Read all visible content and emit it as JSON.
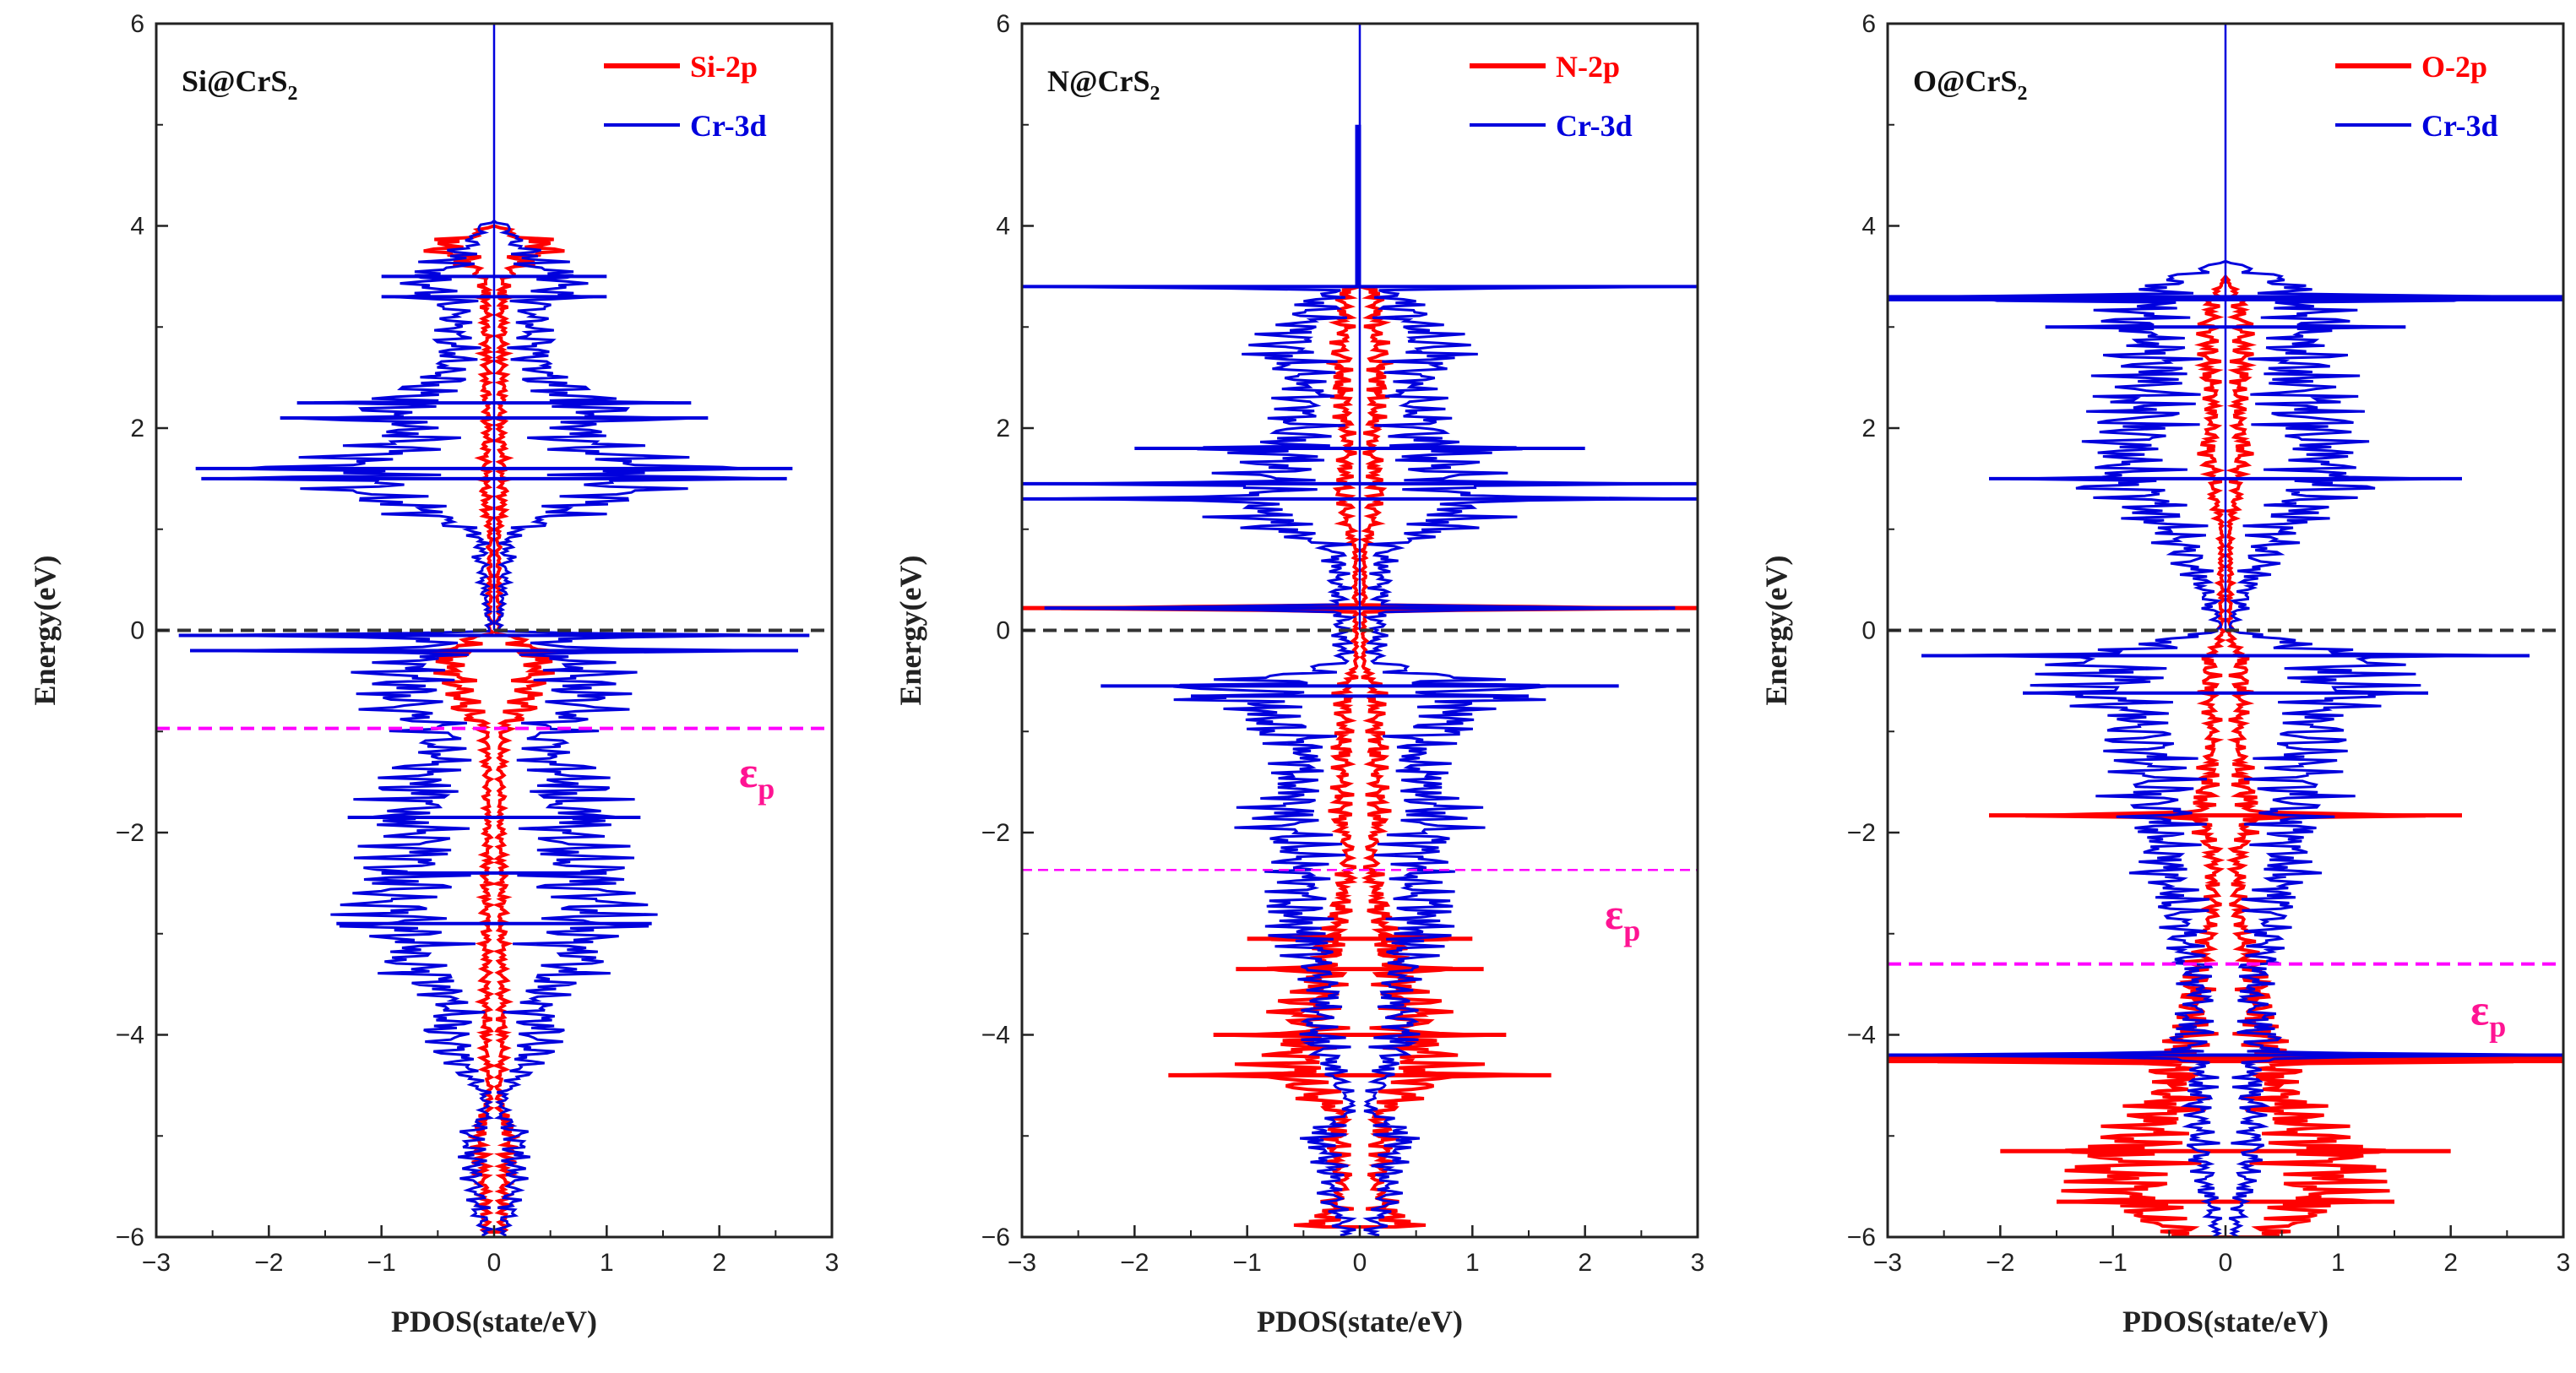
{
  "colors": {
    "p_orbital": "#ff0000",
    "d_orbital": "#0000dd",
    "fermi": "#333333",
    "band_center": "#ff00ff",
    "eps_text": "#ff1493",
    "axis": "#222222"
  },
  "chart_data": [
    {
      "type": "line",
      "title": "Si@CrS₂",
      "title_main": "Si@CrS",
      "title_sub": "2",
      "xlabel": "PDOS(state/eV)",
      "ylabel": "Energy(eV)",
      "xlim": [
        -3,
        3
      ],
      "ylim": [
        -6,
        6
      ],
      "xticks": [
        -3,
        -2,
        -1,
        0,
        1,
        2,
        3
      ],
      "yticks": [
        -6,
        -4,
        -2,
        0,
        2,
        4,
        6
      ],
      "xtick_labels": [
        "−3",
        "−2",
        "−1",
        "0",
        "1",
        "2",
        "3"
      ],
      "ytick_labels": [
        "−6",
        "−4",
        "−2",
        "0",
        "2",
        "4",
        "6"
      ],
      "fermi_level": 0,
      "band_center": -0.97,
      "band_center_label": "ε",
      "band_center_label_sub": "p",
      "band_center_label_y": -1.55,
      "band_center_line_style": "bold",
      "legend": [
        "Si-2p",
        "Cr-3d"
      ],
      "series": [
        {
          "name": "Si-2p",
          "color_key": "p_orbital",
          "envelope": [
            [
              -5.95,
              0.1
            ],
            [
              -5.5,
              0.12
            ],
            [
              -5.0,
              0.2
            ],
            [
              -4.6,
              0.05
            ],
            [
              -4.2,
              0.1
            ],
            [
              -3.5,
              0.1
            ],
            [
              -3.0,
              0.1
            ],
            [
              -2.5,
              0.1
            ],
            [
              -2.0,
              0.08
            ],
            [
              -1.5,
              0.08
            ],
            [
              -1.0,
              0.1
            ],
            [
              -0.8,
              0.35
            ],
            [
              -0.5,
              0.45
            ],
            [
              -0.25,
              0.55
            ],
            [
              -0.1,
              0.3
            ],
            [
              -0.02,
              0.05
            ],
            [
              0.95,
              0.05
            ],
            [
              1.2,
              0.1
            ],
            [
              1.6,
              0.12
            ],
            [
              2.0,
              0.08
            ],
            [
              2.4,
              0.1
            ],
            [
              2.8,
              0.1
            ],
            [
              3.2,
              0.1
            ],
            [
              3.5,
              0.15
            ],
            [
              3.8,
              0.65
            ],
            [
              4.0,
              0.0
            ]
          ]
        },
        {
          "name": "Cr-3d",
          "color_key": "d_orbital",
          "spikes": [
            [
              -0.05,
              2.8
            ],
            [
              -0.2,
              2.7
            ],
            [
              -1.85,
              1.3
            ],
            [
              -2.4,
              1.0
            ],
            [
              -2.9,
              1.4
            ],
            [
              1.5,
              2.6
            ],
            [
              1.6,
              2.65
            ],
            [
              2.1,
              1.9
            ],
            [
              2.25,
              1.75
            ],
            [
              3.5,
              1.0
            ],
            [
              3.3,
              1.0
            ]
          ],
          "envelope": [
            [
              -6.0,
              0.1
            ],
            [
              -5.7,
              0.2
            ],
            [
              -5.3,
              0.25
            ],
            [
              -5.0,
              0.3
            ],
            [
              -4.8,
              0.1
            ],
            [
              -4.6,
              0.1
            ],
            [
              -4.4,
              0.3
            ],
            [
              -4.0,
              0.55
            ],
            [
              -3.6,
              0.55
            ],
            [
              -3.3,
              0.95
            ],
            [
              -2.9,
              1.1
            ],
            [
              -2.4,
              1.2
            ],
            [
              -2.0,
              0.9
            ],
            [
              -1.8,
              1.0
            ],
            [
              -1.4,
              0.9
            ],
            [
              -1.2,
              0.6
            ],
            [
              -0.9,
              0.9
            ],
            [
              -0.7,
              1.2
            ],
            [
              -0.5,
              1.1
            ],
            [
              -0.3,
              1.0
            ],
            [
              -0.05,
              0.6
            ],
            [
              -0.02,
              0.05
            ],
            [
              0.95,
              0.2
            ],
            [
              1.1,
              0.7
            ],
            [
              1.3,
              1.2
            ],
            [
              1.6,
              2.0
            ],
            [
              1.8,
              1.1
            ],
            [
              2.0,
              1.0
            ],
            [
              2.2,
              1.2
            ],
            [
              2.5,
              0.6
            ],
            [
              2.8,
              0.5
            ],
            [
              3.0,
              0.45
            ],
            [
              3.2,
              0.5
            ],
            [
              3.4,
              0.8
            ],
            [
              3.6,
              0.6
            ],
            [
              3.8,
              0.3
            ],
            [
              4.0,
              0.15
            ],
            [
              4.05,
              0.0
            ]
          ]
        }
      ]
    },
    {
      "type": "line",
      "title": "N@CrS₂",
      "title_main": "N@CrS",
      "title_sub": "2",
      "xlabel": "PDOS(state/eV)",
      "ylabel": "Energy(eV)",
      "xlim": [
        -3,
        3
      ],
      "ylim": [
        -6,
        6
      ],
      "xticks": [
        -3,
        -2,
        -1,
        0,
        1,
        2,
        3
      ],
      "yticks": [
        -6,
        -4,
        -2,
        0,
        2,
        4,
        6
      ],
      "xtick_labels": [
        "−3",
        "−2",
        "−1",
        "0",
        "1",
        "2",
        "3"
      ],
      "ytick_labels": [
        "−6",
        "−4",
        "−2",
        "0",
        "2",
        "4",
        "6"
      ],
      "fermi_level": 0,
      "band_center": -2.37,
      "band_center_label": "ε",
      "band_center_label_sub": "p",
      "band_center_label_y": -2.95,
      "band_center_line_style": "thin",
      "legend": [
        "N-2p",
        "Cr-3d"
      ],
      "series": [
        {
          "name": "N-2p",
          "color_key": "p_orbital",
          "spikes": [
            [
              0.22,
              3.0
            ],
            [
              -4.0,
              1.3
            ],
            [
              -4.4,
              1.7
            ],
            [
              -3.05,
              1.0
            ],
            [
              -3.35,
              1.1
            ]
          ],
          "envelope": [
            [
              -5.9,
              0.5
            ],
            [
              -5.5,
              0.2
            ],
            [
              -5.0,
              0.3
            ],
            [
              -4.8,
              0.2
            ],
            [
              -4.6,
              0.55
            ],
            [
              -4.3,
              0.9
            ],
            [
              -4.0,
              0.6
            ],
            [
              -3.8,
              0.7
            ],
            [
              -3.5,
              0.5
            ],
            [
              -3.3,
              0.45
            ],
            [
              -3.0,
              0.3
            ],
            [
              -2.6,
              0.2
            ],
            [
              -2.2,
              0.15
            ],
            [
              -1.8,
              0.25
            ],
            [
              -1.4,
              0.2
            ],
            [
              -1.0,
              0.2
            ],
            [
              -0.6,
              0.2
            ],
            [
              -0.35,
              0.05
            ],
            [
              0.8,
              0.05
            ],
            [
              1.0,
              0.15
            ],
            [
              1.4,
              0.2
            ],
            [
              1.8,
              0.15
            ],
            [
              2.2,
              0.2
            ],
            [
              2.6,
              0.25
            ],
            [
              3.0,
              0.2
            ],
            [
              3.35,
              0.2
            ],
            [
              3.4,
              0.0
            ]
          ]
        },
        {
          "name": "Cr-3d",
          "color_key": "d_orbital",
          "spikes": [
            [
              3.4,
              3.0
            ],
            [
              1.3,
              3.0
            ],
            [
              1.45,
              3.0
            ],
            [
              -0.55,
              2.3
            ],
            [
              -0.65,
              1.5
            ],
            [
              1.8,
              2.0
            ],
            [
              0.22,
              2.8
            ]
          ],
          "vertical_line": {
            "y_from": 3.4,
            "y_to": 5.0,
            "x": 0.0
          },
          "envelope": [
            [
              -6.0,
              0.15
            ],
            [
              -5.7,
              0.3
            ],
            [
              -5.3,
              0.35
            ],
            [
              -5.0,
              0.5
            ],
            [
              -4.7,
              0.1
            ],
            [
              -4.4,
              0.3
            ],
            [
              -4.0,
              0.55
            ],
            [
              -3.6,
              0.4
            ],
            [
              -3.2,
              0.6
            ],
            [
              -2.8,
              0.8
            ],
            [
              -2.4,
              0.7
            ],
            [
              -2.0,
              0.9
            ],
            [
              -1.6,
              0.8
            ],
            [
              -1.2,
              0.65
            ],
            [
              -0.9,
              1.05
            ],
            [
              -0.7,
              1.3
            ],
            [
              -0.5,
              1.1
            ],
            [
              -0.3,
              0.2
            ],
            [
              0.8,
              0.3
            ],
            [
              1.0,
              1.0
            ],
            [
              1.2,
              1.2
            ],
            [
              1.5,
              1.1
            ],
            [
              1.8,
              0.9
            ],
            [
              2.1,
              0.8
            ],
            [
              2.4,
              0.6
            ],
            [
              2.7,
              0.9
            ],
            [
              3.0,
              0.7
            ],
            [
              3.3,
              0.5
            ],
            [
              3.4,
              0.0
            ]
          ]
        }
      ]
    },
    {
      "type": "line",
      "title": "O@CrS₂",
      "title_main": "O@CrS",
      "title_sub": "2",
      "xlabel": "PDOS(state/eV)",
      "ylabel": "Energy(eV)",
      "xlim": [
        -3,
        3
      ],
      "ylim": [
        -6,
        6
      ],
      "xticks": [
        -3,
        -2,
        -1,
        0,
        1,
        2,
        3
      ],
      "yticks": [
        -6,
        -4,
        -2,
        0,
        2,
        4,
        6
      ],
      "xtick_labels": [
        "−3",
        "−2",
        "−1",
        "0",
        "1",
        "2",
        "3"
      ],
      "ytick_labels": [
        "−6",
        "−4",
        "−2",
        "0",
        "2",
        "4",
        "6"
      ],
      "fermi_level": 0,
      "band_center": -3.3,
      "band_center_label": "ε",
      "band_center_label_sub": "p",
      "band_center_label_y": -3.9,
      "band_center_line_style": "bold",
      "legend": [
        "O-2p",
        "Cr-3d"
      ],
      "series": [
        {
          "name": "O-2p",
          "color_key": "p_orbital",
          "spikes": [
            [
              -4.22,
              3.0
            ],
            [
              -4.26,
              3.0
            ],
            [
              -1.83,
              2.1
            ],
            [
              -5.15,
              2.0
            ],
            [
              -5.65,
              1.5
            ]
          ],
          "envelope": [
            [
              -6.0,
              0.45
            ],
            [
              -5.8,
              0.9
            ],
            [
              -5.5,
              1.2
            ],
            [
              -5.2,
              1.3
            ],
            [
              -5.0,
              1.1
            ],
            [
              -4.8,
              0.8
            ],
            [
              -4.6,
              0.7
            ],
            [
              -4.4,
              0.6
            ],
            [
              -4.1,
              0.5
            ],
            [
              -3.8,
              0.35
            ],
            [
              -3.5,
              0.4
            ],
            [
              -3.2,
              0.3
            ],
            [
              -3.0,
              0.2
            ],
            [
              -2.6,
              0.15
            ],
            [
              -2.2,
              0.15
            ],
            [
              -1.8,
              0.3
            ],
            [
              -1.4,
              0.2
            ],
            [
              -1.0,
              0.15
            ],
            [
              -0.6,
              0.2
            ],
            [
              -0.3,
              0.2
            ],
            [
              -0.05,
              0.05
            ],
            [
              1.0,
              0.05
            ],
            [
              1.4,
              0.15
            ],
            [
              1.8,
              0.2
            ],
            [
              2.2,
              0.15
            ],
            [
              2.6,
              0.2
            ],
            [
              3.0,
              0.2
            ],
            [
              3.3,
              0.15
            ],
            [
              3.5,
              0.0
            ]
          ]
        },
        {
          "name": "Cr-3d",
          "color_key": "d_orbital",
          "spikes": [
            [
              3.27,
              3.0
            ],
            [
              3.3,
              3.0
            ],
            [
              -0.25,
              2.7
            ],
            [
              -0.62,
              1.8
            ],
            [
              1.5,
              2.1
            ],
            [
              3.0,
              1.6
            ],
            [
              -4.2,
              3.0
            ]
          ],
          "envelope": [
            [
              -6.0,
              0.1
            ],
            [
              -5.6,
              0.2
            ],
            [
              -5.2,
              0.3
            ],
            [
              -4.8,
              0.35
            ],
            [
              -4.4,
              0.3
            ],
            [
              -4.0,
              0.45
            ],
            [
              -3.6,
              0.3
            ],
            [
              -3.2,
              0.45
            ],
            [
              -2.8,
              0.55
            ],
            [
              -2.4,
              0.7
            ],
            [
              -2.0,
              0.8
            ],
            [
              -1.6,
              0.9
            ],
            [
              -1.2,
              1.0
            ],
            [
              -0.9,
              1.1
            ],
            [
              -0.6,
              1.3
            ],
            [
              -0.3,
              1.5
            ],
            [
              -0.05,
              0.5
            ],
            [
              0.0,
              0.05
            ],
            [
              1.0,
              0.6
            ],
            [
              1.3,
              1.1
            ],
            [
              1.6,
              1.2
            ],
            [
              2.0,
              1.1
            ],
            [
              2.4,
              1.0
            ],
            [
              2.8,
              0.9
            ],
            [
              3.1,
              1.0
            ],
            [
              3.4,
              0.8
            ],
            [
              3.6,
              0.2
            ],
            [
              3.65,
              0.0
            ]
          ]
        }
      ]
    }
  ]
}
